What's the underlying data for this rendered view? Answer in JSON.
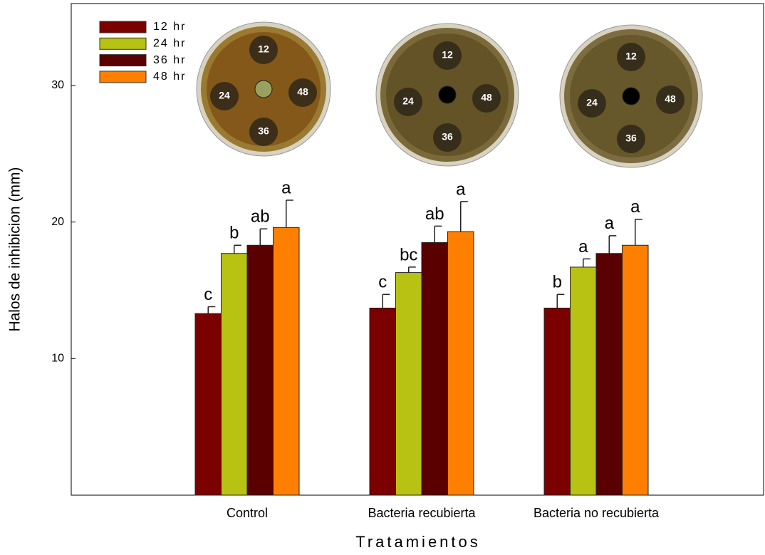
{
  "chart_data": {
    "type": "bar",
    "y_label": "Halos de inhibicion (mm)",
    "x_label": "Tratamientos",
    "categories": [
      "Control",
      "Bacteria recubierta",
      "Bacteria no recubierta"
    ],
    "series": [
      {
        "name": "12 hr",
        "color": "#7b0000",
        "values": [
          13.3,
          13.7,
          13.7
        ],
        "errors": [
          0.5,
          1.0,
          1.0
        ],
        "significance": [
          "c",
          "c",
          "b"
        ]
      },
      {
        "name": "24 hr",
        "color": "#b8c212",
        "values": [
          17.7,
          16.3,
          16.7
        ],
        "errors": [
          0.6,
          0.4,
          0.6
        ],
        "significance": [
          "b",
          "bc",
          "a"
        ]
      },
      {
        "name": "36 hr",
        "color": "#5a0000",
        "values": [
          18.3,
          18.5,
          17.7
        ],
        "errors": [
          1.2,
          1.2,
          1.3
        ],
        "significance": [
          "ab",
          "ab",
          "a"
        ]
      },
      {
        "name": "48 hr",
        "color": "#ff8000",
        "values": [
          19.6,
          19.3,
          18.3
        ],
        "errors": [
          2.0,
          2.2,
          1.9
        ],
        "significance": [
          "a",
          "a",
          "a"
        ]
      }
    ],
    "ylim": [
      0,
      36
    ],
    "yticks": [
      10,
      20,
      30
    ],
    "legend": "upper-left"
  },
  "inset_images": [
    {
      "wells": [
        "12",
        "24",
        "36",
        "48"
      ]
    },
    {
      "wells": [
        "12",
        "24",
        "36",
        "48"
      ]
    },
    {
      "wells": [
        "12",
        "24",
        "36",
        "48"
      ]
    }
  ]
}
